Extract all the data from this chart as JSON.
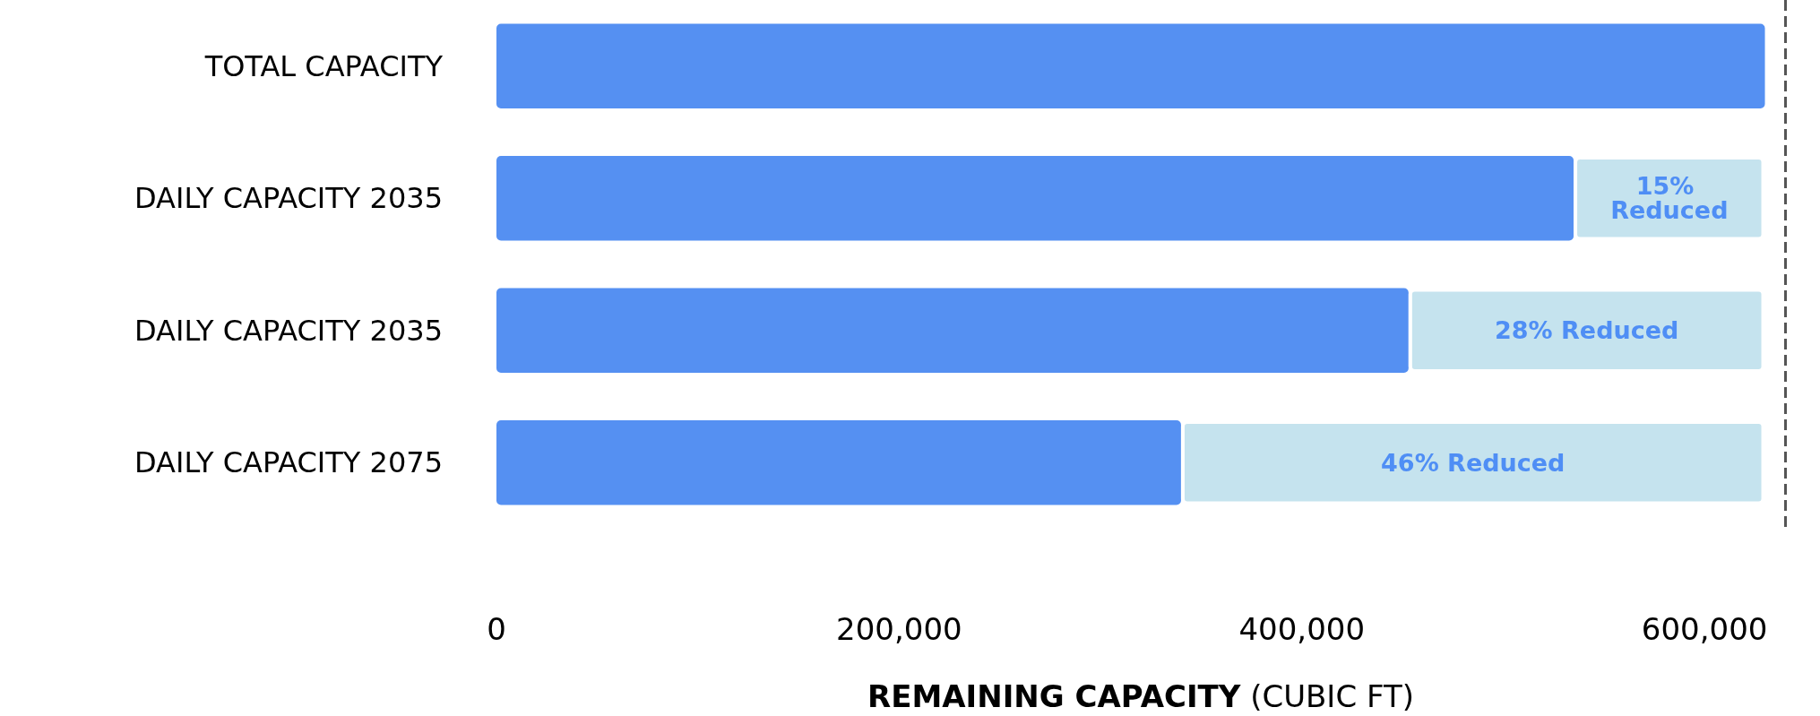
{
  "chart_data": {
    "type": "bar",
    "orientation": "horizontal",
    "stacked": true,
    "categories": [
      "TOTAL CAPACITY",
      "DAILY CAPACITY 2035",
      "DAILY CAPACITY 2035",
      "DAILY CAPACITY 2075"
    ],
    "series": [
      {
        "color": "#5590f2",
        "values": [
          630000,
          535000,
          453000,
          340000
        ]
      },
      {
        "color": "#c5e3ee",
        "values": [
          null,
          95000,
          177000,
          290000
        ]
      }
    ],
    "xlabel": "REMAINING CAPACITY (CUBIC FT)",
    "xlim": [
      0,
      640000
    ],
    "xticks": [
      0,
      {
        "value": 200000,
        "label": "200,000"
      },
      {
        "value": 400000,
        "label": "400,000"
      },
      {
        "value": 600000,
        "label": "600,000"
      }
    ],
    "ref_lines": [
      {
        "axis": "x",
        "value": 640000,
        "label": null,
        "color": "#555555",
        "line_style": "dashed"
      }
    ],
    "annotations": [
      "15% Reduced",
      "28% Reduced",
      "46% Reduced"
    ],
    "grid": false
  }
}
